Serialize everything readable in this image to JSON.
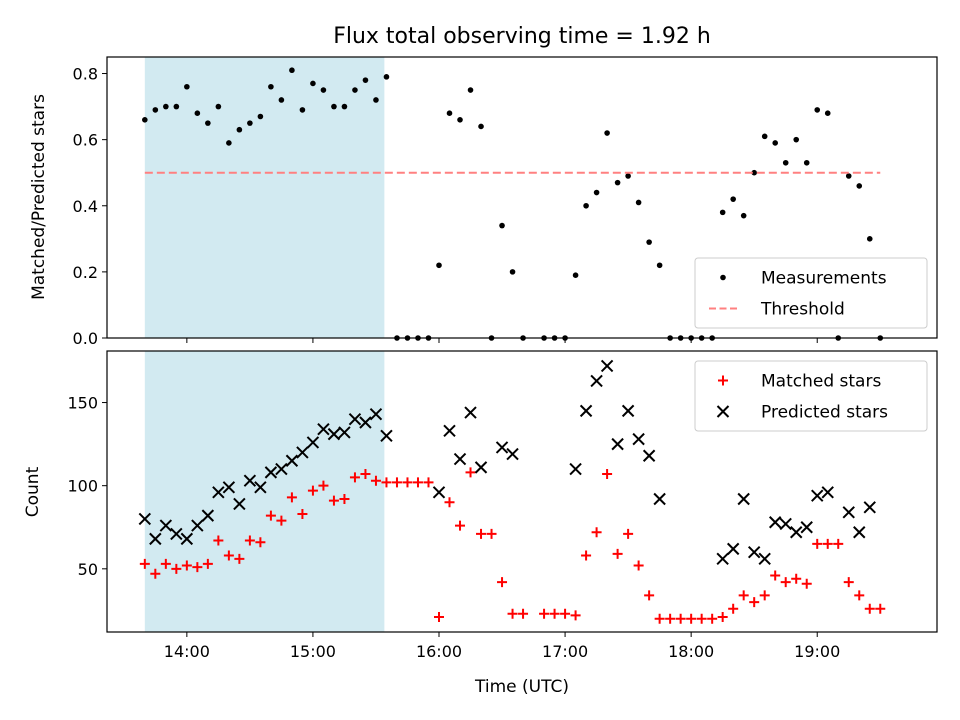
{
  "chart_data": {
    "title": "Flux total observing time = 1.92 h",
    "type": "scatter",
    "x_unit": "time of day (UTC)",
    "xlabel": "Time (UTC)",
    "xlim": [
      "13:22",
      "19:57"
    ],
    "x_ticks": [
      "14:00",
      "15:00",
      "16:00",
      "17:00",
      "18:00",
      "19:00"
    ],
    "shaded_interval": {
      "start": "13:40",
      "end": "15:34",
      "color": "#add8e6"
    },
    "panels": [
      {
        "id": "ratio",
        "ylabel": "Matched/Predicted stars",
        "ylim": [
          0,
          0.85
        ],
        "y_ticks": [
          "0.0",
          "0.2",
          "0.4",
          "0.6",
          "0.8"
        ],
        "legend_position": "lower-right",
        "series": [
          {
            "name": "Measurements",
            "marker": "dot",
            "color": "#000000",
            "points": [
              [
                "13:40",
                0.66
              ],
              [
                "13:45",
                0.69
              ],
              [
                "13:50",
                0.7
              ],
              [
                "13:55",
                0.7
              ],
              [
                "14:00",
                0.76
              ],
              [
                "14:05",
                0.68
              ],
              [
                "14:10",
                0.65
              ],
              [
                "14:15",
                0.7
              ],
              [
                "14:20",
                0.59
              ],
              [
                "14:25",
                0.63
              ],
              [
                "14:30",
                0.65
              ],
              [
                "14:35",
                0.67
              ],
              [
                "14:40",
                0.76
              ],
              [
                "14:45",
                0.72
              ],
              [
                "14:50",
                0.81
              ],
              [
                "14:55",
                0.69
              ],
              [
                "15:00",
                0.77
              ],
              [
                "15:05",
                0.75
              ],
              [
                "15:10",
                0.7
              ],
              [
                "15:15",
                0.7
              ],
              [
                "15:20",
                0.75
              ],
              [
                "15:25",
                0.78
              ],
              [
                "15:30",
                0.72
              ],
              [
                "15:35",
                0.79
              ],
              [
                "15:40",
                0.0
              ],
              [
                "15:45",
                0.0
              ],
              [
                "15:50",
                0.0
              ],
              [
                "15:55",
                0.0
              ],
              [
                "16:00",
                0.22
              ],
              [
                "16:05",
                0.68
              ],
              [
                "16:10",
                0.66
              ],
              [
                "16:15",
                0.75
              ],
              [
                "16:20",
                0.64
              ],
              [
                "16:25",
                0.0
              ],
              [
                "16:30",
                0.34
              ],
              [
                "16:35",
                0.2
              ],
              [
                "16:40",
                0.0
              ],
              [
                "16:50",
                0.0
              ],
              [
                "16:55",
                0.0
              ],
              [
                "17:00",
                0.0
              ],
              [
                "17:05",
                0.19
              ],
              [
                "17:10",
                0.4
              ],
              [
                "17:15",
                0.44
              ],
              [
                "17:20",
                0.62
              ],
              [
                "17:25",
                0.47
              ],
              [
                "17:30",
                0.49
              ],
              [
                "17:35",
                0.41
              ],
              [
                "17:40",
                0.29
              ],
              [
                "17:45",
                0.22
              ],
              [
                "17:50",
                0.0
              ],
              [
                "17:55",
                0.0
              ],
              [
                "18:00",
                0.0
              ],
              [
                "18:05",
                0.0
              ],
              [
                "18:10",
                0.0
              ],
              [
                "18:15",
                0.38
              ],
              [
                "18:20",
                0.42
              ],
              [
                "18:25",
                0.37
              ],
              [
                "18:30",
                0.5
              ],
              [
                "18:35",
                0.61
              ],
              [
                "18:40",
                0.59
              ],
              [
                "18:45",
                0.53
              ],
              [
                "18:50",
                0.6
              ],
              [
                "18:55",
                0.53
              ],
              [
                "19:00",
                0.69
              ],
              [
                "19:05",
                0.68
              ],
              [
                "19:10",
                0.0
              ],
              [
                "19:15",
                0.49
              ],
              [
                "19:20",
                0.46
              ],
              [
                "19:25",
                0.3
              ],
              [
                "19:30",
                0.0
              ]
            ]
          },
          {
            "name": "Threshold",
            "marker": "dashed-line",
            "color": "#ff8080",
            "points": [
              [
                "13:40",
                0.5
              ],
              [
                "19:30",
                0.5
              ]
            ]
          }
        ]
      },
      {
        "id": "counts",
        "ylabel": "Count",
        "ylim": [
          12,
          181
        ],
        "y_ticks": [
          "50",
          "100",
          "150"
        ],
        "legend_position": "upper-right",
        "series": [
          {
            "name": "Matched stars",
            "marker": "plus",
            "color": "#ff0000",
            "points": [
              [
                "13:40",
                53
              ],
              [
                "13:45",
                47
              ],
              [
                "13:50",
                53
              ],
              [
                "13:55",
                50
              ],
              [
                "14:00",
                52
              ],
              [
                "14:05",
                51
              ],
              [
                "14:10",
                53
              ],
              [
                "14:15",
                67
              ],
              [
                "14:20",
                58
              ],
              [
                "14:25",
                56
              ],
              [
                "14:30",
                67
              ],
              [
                "14:35",
                66
              ],
              [
                "14:40",
                82
              ],
              [
                "14:45",
                79
              ],
              [
                "14:50",
                93
              ],
              [
                "14:55",
                83
              ],
              [
                "15:00",
                97
              ],
              [
                "15:05",
                100
              ],
              [
                "15:10",
                91
              ],
              [
                "15:15",
                92
              ],
              [
                "15:20",
                105
              ],
              [
                "15:25",
                107
              ],
              [
                "15:30",
                103
              ],
              [
                "15:35",
                102
              ],
              [
                "15:40",
                102
              ],
              [
                "15:45",
                102
              ],
              [
                "15:50",
                102
              ],
              [
                "15:55",
                102
              ],
              [
                "16:00",
                21
              ],
              [
                "16:05",
                90
              ],
              [
                "16:10",
                76
              ],
              [
                "16:15",
                108
              ],
              [
                "16:20",
                71
              ],
              [
                "16:25",
                71
              ],
              [
                "16:30",
                42
              ],
              [
                "16:35",
                23
              ],
              [
                "16:40",
                23
              ],
              [
                "16:50",
                23
              ],
              [
                "16:55",
                23
              ],
              [
                "17:00",
                23
              ],
              [
                "17:05",
                22
              ],
              [
                "17:10",
                58
              ],
              [
                "17:15",
                72
              ],
              [
                "17:20",
                107
              ],
              [
                "17:25",
                59
              ],
              [
                "17:30",
                71
              ],
              [
                "17:35",
                52
              ],
              [
                "17:40",
                34
              ],
              [
                "17:45",
                20
              ],
              [
                "17:50",
                20
              ],
              [
                "17:55",
                20
              ],
              [
                "18:00",
                20
              ],
              [
                "18:05",
                20
              ],
              [
                "18:10",
                20
              ],
              [
                "18:15",
                21
              ],
              [
                "18:20",
                26
              ],
              [
                "18:25",
                34
              ],
              [
                "18:30",
                30
              ],
              [
                "18:35",
                34
              ],
              [
                "18:40",
                46
              ],
              [
                "18:45",
                42
              ],
              [
                "18:50",
                44
              ],
              [
                "18:55",
                41
              ],
              [
                "19:00",
                65
              ],
              [
                "19:05",
                65
              ],
              [
                "19:10",
                65
              ],
              [
                "19:15",
                42
              ],
              [
                "19:20",
                34
              ],
              [
                "19:25",
                26
              ],
              [
                "19:30",
                26
              ]
            ]
          },
          {
            "name": "Predicted stars",
            "marker": "x",
            "color": "#000000",
            "points": [
              [
                "13:40",
                80
              ],
              [
                "13:45",
                68
              ],
              [
                "13:50",
                76
              ],
              [
                "13:55",
                71
              ],
              [
                "14:00",
                68
              ],
              [
                "14:05",
                76
              ],
              [
                "14:10",
                82
              ],
              [
                "14:15",
                96
              ],
              [
                "14:20",
                99
              ],
              [
                "14:25",
                89
              ],
              [
                "14:30",
                103
              ],
              [
                "14:35",
                99
              ],
              [
                "14:40",
                108
              ],
              [
                "14:45",
                110
              ],
              [
                "14:50",
                115
              ],
              [
                "14:55",
                120
              ],
              [
                "15:00",
                126
              ],
              [
                "15:05",
                134
              ],
              [
                "15:10",
                131
              ],
              [
                "15:15",
                132
              ],
              [
                "15:20",
                140
              ],
              [
                "15:25",
                138
              ],
              [
                "15:30",
                143
              ],
              [
                "15:35",
                130
              ],
              [
                "16:00",
                96
              ],
              [
                "16:05",
                133
              ],
              [
                "16:10",
                116
              ],
              [
                "16:15",
                144
              ],
              [
                "16:20",
                111
              ],
              [
                "16:30",
                123
              ],
              [
                "16:35",
                119
              ],
              [
                "17:05",
                110
              ],
              [
                "17:10",
                145
              ],
              [
                "17:15",
                163
              ],
              [
                "17:20",
                172
              ],
              [
                "17:25",
                125
              ],
              [
                "17:30",
                145
              ],
              [
                "17:35",
                128
              ],
              [
                "17:40",
                118
              ],
              [
                "17:45",
                92
              ],
              [
                "18:15",
                56
              ],
              [
                "18:20",
                62
              ],
              [
                "18:25",
                92
              ],
              [
                "18:30",
                60
              ],
              [
                "18:35",
                56
              ],
              [
                "18:40",
                78
              ],
              [
                "18:45",
                77
              ],
              [
                "18:50",
                72
              ],
              [
                "18:55",
                75
              ],
              [
                "19:00",
                94
              ],
              [
                "19:05",
                96
              ],
              [
                "19:15",
                84
              ],
              [
                "19:20",
                72
              ],
              [
                "19:25",
                87
              ]
            ]
          }
        ]
      }
    ]
  }
}
